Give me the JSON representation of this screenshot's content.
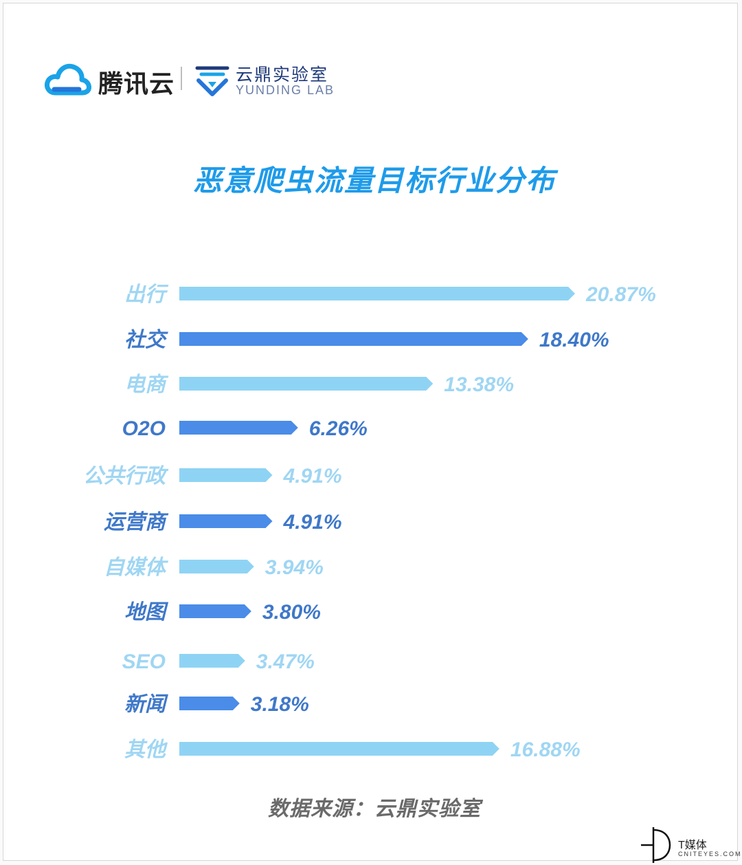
{
  "header": {
    "tencent_name": "腾讯云",
    "yunding_name": "云鼎实验室",
    "yunding_en": "YUNDING LAB"
  },
  "colors": {
    "light_bar": "#8fd3f4",
    "dark_bar": "#4a8ce8",
    "light_label": "#9fd6f3",
    "dark_label": "#3f78c9",
    "title": "#1e9bea"
  },
  "chart_data": {
    "type": "bar",
    "orientation": "horizontal",
    "title": "恶意爬虫流量目标行业分布",
    "categories": [
      "出行",
      "社交",
      "电商",
      "O2O",
      "公共行政",
      "运营商",
      "自媒体",
      "地图",
      "SEO",
      "新闻",
      "其他"
    ],
    "values": [
      20.87,
      18.4,
      13.38,
      6.26,
      4.91,
      4.91,
      3.94,
      3.8,
      3.47,
      3.18,
      16.88
    ],
    "value_labels": [
      "20.87%",
      "18.40%",
      "13.38%",
      "6.26%",
      "4.91%",
      "4.91%",
      "3.94%",
      "3.80%",
      "3.47%",
      "3.18%",
      "16.88%"
    ],
    "unit": "%",
    "bar_styles": [
      "light",
      "dark",
      "light",
      "dark",
      "light",
      "dark",
      "light",
      "dark",
      "light",
      "dark",
      "light"
    ],
    "xlabel": "",
    "ylabel": "",
    "grid": false,
    "legend": "none"
  },
  "footer": {
    "source": "数据来源：云鼎实验室",
    "watermark_cn": "T媒体",
    "watermark_en": "CNITEYES.COM"
  }
}
